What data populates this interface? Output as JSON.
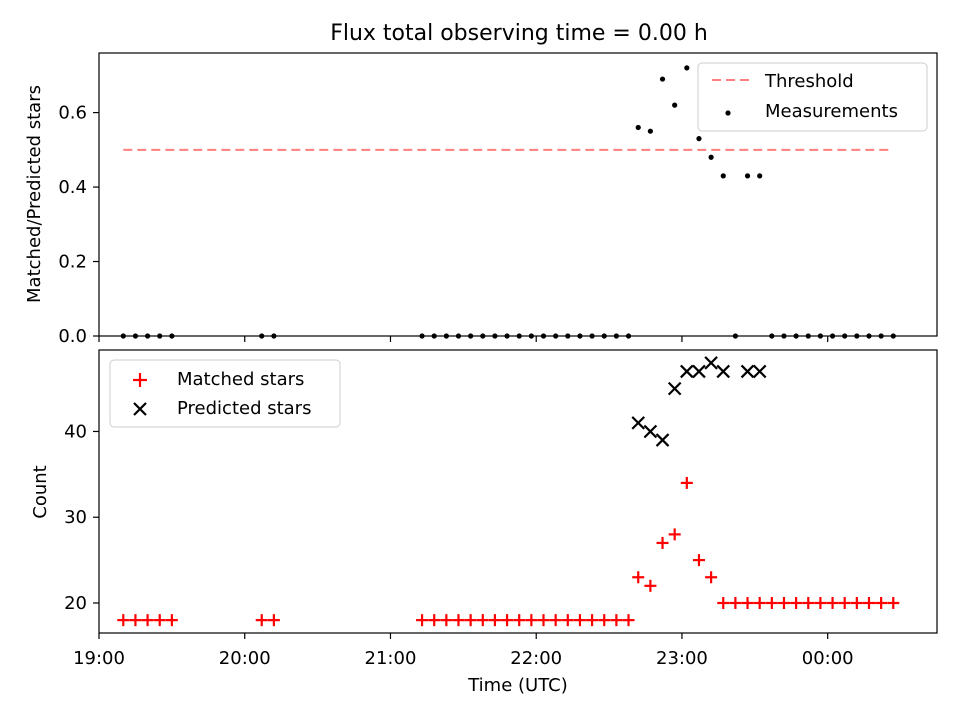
{
  "figure": {
    "title": "Flux total observing time = 0.00 h",
    "xlabel": "Time (UTC)"
  },
  "colors": {
    "threshold": "#ff7f7f",
    "measurements": "#000000",
    "matched": "#ff0000",
    "predicted": "#000000"
  },
  "chart_data": [
    {
      "type": "scatter",
      "ylabel": "Matched/Predicted stars",
      "xlim": [
        "19:00",
        "00:45"
      ],
      "ylim": [
        0,
        0.76
      ],
      "x_axis": "time (UTC)",
      "x_ticks": [
        "19:00",
        "20:00",
        "21:00",
        "22:00",
        "23:00",
        "00:00"
      ],
      "y_ticks": [
        "0.0",
        "0.2",
        "0.4",
        "0.6"
      ],
      "y_tick_values": [
        0,
        0.2,
        0.4,
        0.6
      ],
      "x_tick_labels_visible": false,
      "legend_position": "top-right",
      "series": [
        {
          "name": "Threshold",
          "kind": "dashed-line",
          "x": [
            "19:10",
            "00:26"
          ],
          "y": [
            0.5,
            0.5
          ]
        },
        {
          "name": "Measurements",
          "kind": "dot",
          "x": [
            "19:10",
            "19:15",
            "19:20",
            "19:25",
            "19:30",
            "20:07",
            "20:12",
            "21:13",
            "21:18",
            "21:23",
            "21:28",
            "21:33",
            "21:38",
            "21:43",
            "21:48",
            "21:53",
            "21:58",
            "22:03",
            "22:08",
            "22:13",
            "22:18",
            "22:23",
            "22:28",
            "22:33",
            "22:38",
            "22:42",
            "22:47",
            "22:52",
            "22:57",
            "23:02",
            "23:07",
            "23:12",
            "23:17",
            "23:22",
            "23:27",
            "23:32",
            "23:37",
            "23:42",
            "23:47",
            "23:52",
            "23:57",
            "00:02",
            "00:07",
            "00:12",
            "00:17",
            "00:22",
            "00:27"
          ],
          "y": [
            0,
            0,
            0,
            0,
            0,
            0,
            0,
            0,
            0,
            0,
            0,
            0,
            0,
            0,
            0,
            0,
            0,
            0,
            0,
            0,
            0,
            0,
            0,
            0,
            0,
            0.56,
            0.55,
            0.69,
            0.62,
            0.72,
            0.53,
            0.48,
            0.43,
            0,
            0.43,
            0.43,
            0,
            0,
            0,
            0,
            0,
            0,
            0,
            0,
            0,
            0,
            0
          ]
        }
      ]
    },
    {
      "type": "scatter",
      "ylabel": "Count",
      "xlim": [
        "19:00",
        "00:45"
      ],
      "ylim": [
        16.5,
        49.5
      ],
      "x_axis": "time (UTC)",
      "x_ticks": [
        "19:00",
        "20:00",
        "21:00",
        "22:00",
        "23:00",
        "00:00"
      ],
      "y_ticks": [
        "20",
        "30",
        "40"
      ],
      "y_tick_values": [
        20,
        30,
        40
      ],
      "legend_position": "top-left",
      "series": [
        {
          "name": "Matched stars",
          "kind": "plus",
          "x": [
            "19:10",
            "19:15",
            "19:20",
            "19:25",
            "19:30",
            "20:07",
            "20:12",
            "21:13",
            "21:18",
            "21:23",
            "21:28",
            "21:33",
            "21:38",
            "21:43",
            "21:48",
            "21:53",
            "21:58",
            "22:03",
            "22:08",
            "22:13",
            "22:18",
            "22:23",
            "22:28",
            "22:33",
            "22:38",
            "22:42",
            "22:47",
            "22:52",
            "22:57",
            "23:02",
            "23:07",
            "23:12",
            "23:17",
            "23:22",
            "23:27",
            "23:32",
            "23:37",
            "23:42",
            "23:47",
            "23:52",
            "23:57",
            "00:02",
            "00:07",
            "00:12",
            "00:17",
            "00:22",
            "00:27"
          ],
          "y": [
            18,
            18,
            18,
            18,
            18,
            18,
            18,
            18,
            18,
            18,
            18,
            18,
            18,
            18,
            18,
            18,
            18,
            18,
            18,
            18,
            18,
            18,
            18,
            18,
            18,
            23,
            22,
            27,
            28,
            34,
            25,
            23,
            20,
            20,
            20,
            20,
            20,
            20,
            20,
            20,
            20,
            20,
            20,
            20,
            20,
            20,
            20
          ]
        },
        {
          "name": "Predicted stars",
          "kind": "x",
          "x": [
            "22:42",
            "22:47",
            "22:52",
            "22:57",
            "23:02",
            "23:07",
            "23:12",
            "23:17",
            "23:27",
            "23:32"
          ],
          "y": [
            41,
            40,
            39,
            45,
            47,
            47,
            48,
            47,
            47,
            47
          ]
        }
      ]
    }
  ]
}
